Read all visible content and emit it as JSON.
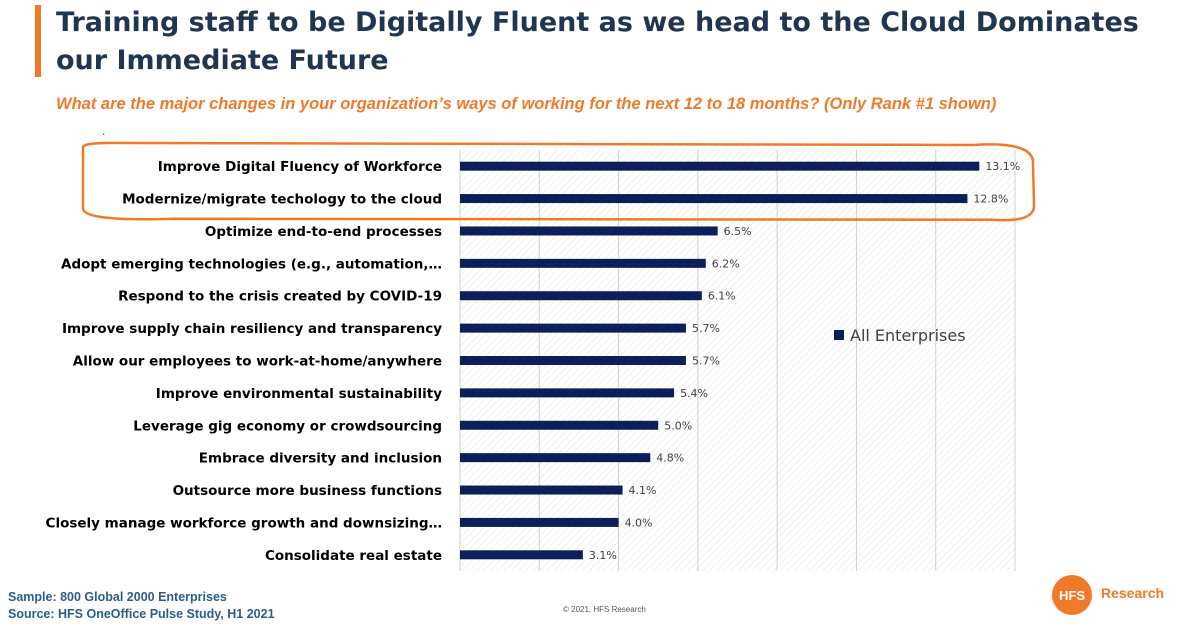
{
  "header": {
    "title": "Training staff to be Digitally Fluent as we head to the Cloud Dominates our Immediate Future",
    "subtitle": "What are the major changes in your organization’s ways of working for the next 12 to 18 months?  (Only Rank #1 shown)",
    "dot": "."
  },
  "chart_data": {
    "type": "bar",
    "orientation": "horizontal",
    "categories": [
      "Improve Digital Fluency of Workforce",
      "Modernize/migrate techology to the cloud",
      "Optimize end-to-end processes",
      "Adopt emerging technologies (e.g., automation,…",
      "Respond to the crisis created by COVID-19",
      "Improve supply chain resiliency and transparency",
      "Allow our employees to work-at-home/anywhere",
      "Improve environmental sustainability",
      "Leverage gig economy or crowdsourcing",
      "Embrace diversity and inclusion",
      "Outsource more business functions",
      "Closely manage workforce growth and downsizing…",
      "Consolidate real estate"
    ],
    "series": [
      {
        "name": "All Enterprises",
        "values": [
          13.1,
          12.8,
          6.5,
          6.2,
          6.1,
          5.7,
          5.7,
          5.4,
          5.0,
          4.8,
          4.1,
          4.0,
          3.1
        ],
        "labels": [
          "13.1%",
          "12.8%",
          "6.5%",
          "6.2%",
          "6.1%",
          "5.7%",
          "5.7%",
          "5.4%",
          "5.0%",
          "4.8%",
          "4.1%",
          "4.0%",
          "3.1%"
        ]
      }
    ],
    "xlim": [
      0,
      14
    ],
    "grid": true,
    "legend_position": "right",
    "highlighted_categories": [
      0,
      1
    ],
    "colors": {
      "bar": "#0E1E5B",
      "highlight": "#F07A29",
      "grid": "#D0D0D0"
    }
  },
  "footer": {
    "sample": "Sample: 800 Global 2000 Enterprises",
    "source": "Source:  HFS OneOffice Pulse Study, H1 2021",
    "copyright": "© 2021, HFS Research"
  },
  "logo": {
    "mark": "HFS",
    "name": "Research"
  }
}
